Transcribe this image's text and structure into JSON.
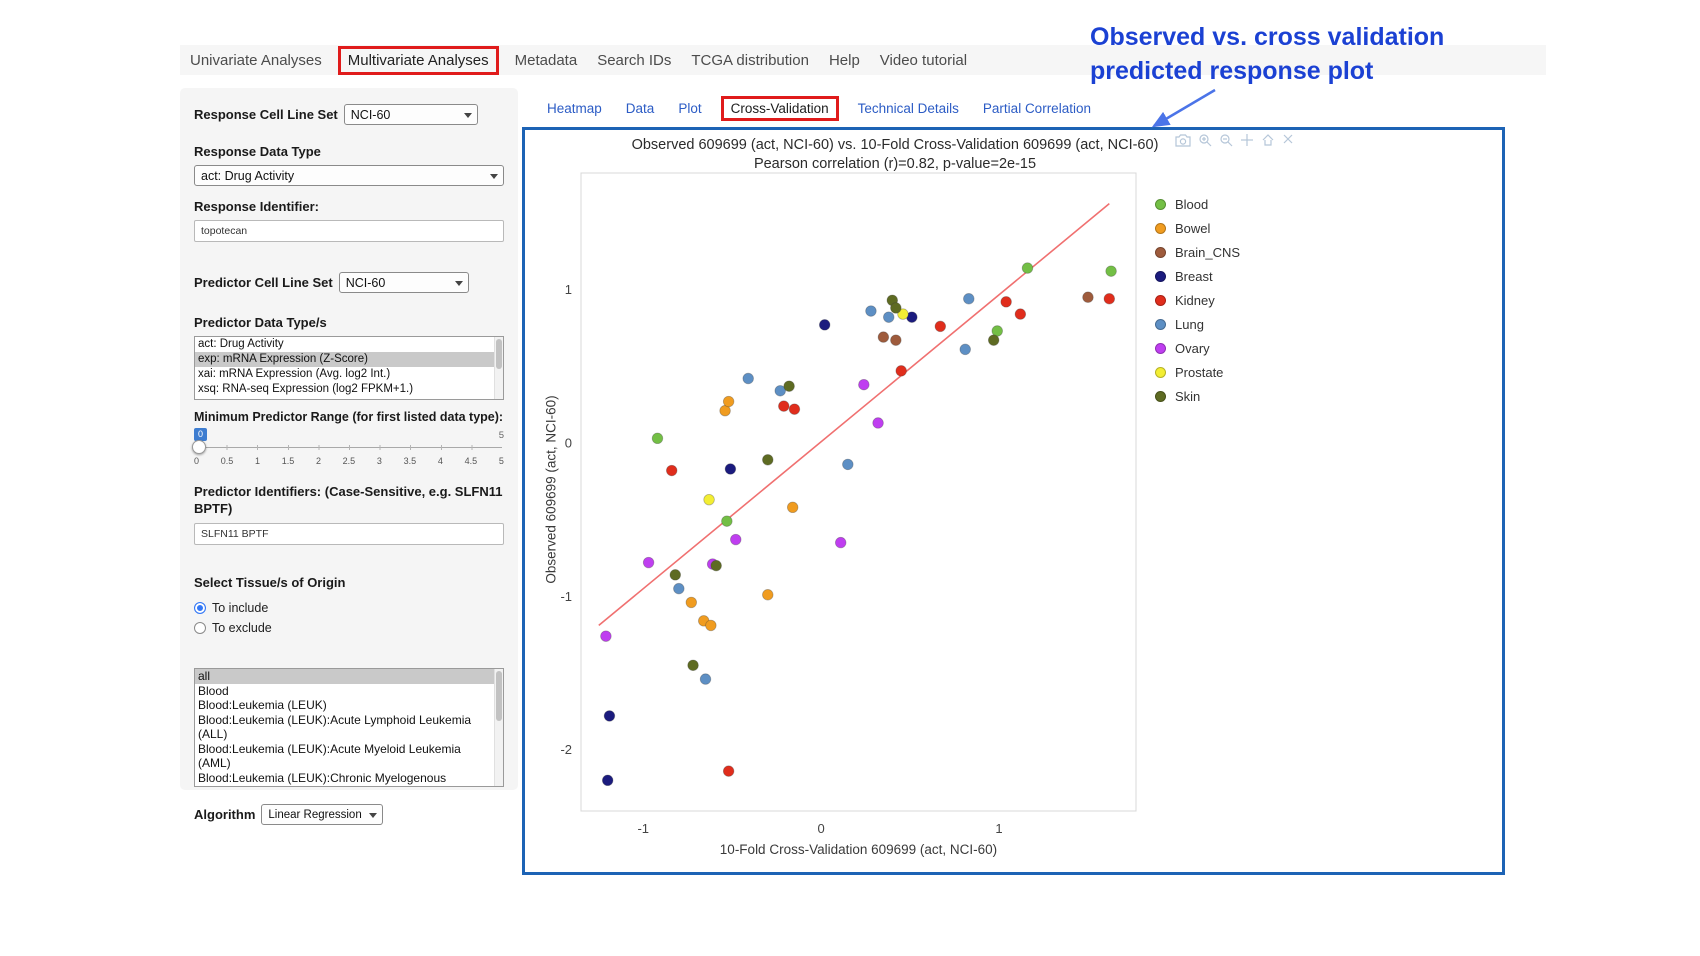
{
  "annotation": {
    "line1": "Observed vs. cross validation",
    "line2": "predicted response plot"
  },
  "nav": {
    "items": [
      {
        "label": "Univariate Analyses"
      },
      {
        "label": "Multivariate Analyses"
      },
      {
        "label": "Metadata"
      },
      {
        "label": "Search IDs"
      },
      {
        "label": "TCGA distribution"
      },
      {
        "label": "Help"
      },
      {
        "label": "Video tutorial"
      }
    ]
  },
  "subtabs": {
    "items": [
      {
        "label": "Heatmap"
      },
      {
        "label": "Data"
      },
      {
        "label": "Plot"
      },
      {
        "label": "Cross-Validation"
      },
      {
        "label": "Technical Details"
      },
      {
        "label": "Partial Correlation"
      }
    ]
  },
  "sidebar": {
    "response_cell_line_set": {
      "label": "Response Cell Line Set",
      "value": "NCI-60"
    },
    "response_data_type": {
      "label": "Response Data Type",
      "value": "act: Drug Activity"
    },
    "response_identifier": {
      "label": "Response Identifier:",
      "value": "topotecan"
    },
    "predictor_cell_line_set": {
      "label": "Predictor Cell Line Set",
      "value": "NCI-60"
    },
    "predictor_data_types": {
      "label": "Predictor Data Type/s",
      "options": [
        "act: Drug Activity",
        "exp: mRNA Expression (Z-Score)",
        "xai: mRNA Expression (Avg. log2 Int.)",
        "xsq: RNA-seq Expression (log2 FPKM+1.)"
      ],
      "selected": "exp: mRNA Expression (Z-Score)"
    },
    "min_predictor_range": {
      "label": "Minimum Predictor Range (for first listed data type):",
      "value": "0",
      "max_label": "5",
      "ticks": [
        "0",
        "0.5",
        "1",
        "1.5",
        "2",
        "2.5",
        "3",
        "3.5",
        "4",
        "4.5",
        "5"
      ]
    },
    "predictor_identifiers": {
      "label": "Predictor Identifiers: (Case-Sensitive, e.g. SLFN11 BPTF)",
      "value": "SLFN11 BPTF"
    },
    "tissue_origin": {
      "label": "Select Tissue/s of Origin",
      "radios": [
        {
          "label": "To include",
          "checked": true
        },
        {
          "label": "To exclude",
          "checked": false
        }
      ],
      "options": [
        "all",
        "Blood",
        "Blood:Leukemia (LEUK)",
        "Blood:Leukemia (LEUK):Acute Lymphoid Leukemia (ALL)",
        "Blood:Leukemia (LEUK):Acute Myeloid Leukemia (AML)",
        "Blood:Leukemia (LEUK):Chronic Myelogenous Leukemia (CML)"
      ],
      "selected": "all"
    },
    "algorithm": {
      "label": "Algorithm",
      "value": "Linear Regression"
    }
  },
  "chart_data": {
    "type": "scatter",
    "title": "Observed 609699 (act, NCI-60) vs. 10-Fold Cross-Validation 609699 (act, NCI-60)",
    "subtitle": "Pearson correlation (r)=0.82, p-value=2e-15",
    "xlabel": "10-Fold Cross-Validation 609699 (act, NCI-60)",
    "ylabel": "Observed 609699 (act, NCI-60)",
    "xlim": [
      -1.35,
      1.77
    ],
    "ylim": [
      -2.4,
      1.76
    ],
    "xticks": [
      -1,
      0,
      1
    ],
    "yticks": [
      -2,
      -1,
      0,
      1
    ],
    "grid": false,
    "legend_position": "right",
    "regression_line": {
      "x1": -1.25,
      "y1": -1.19,
      "x2": 1.62,
      "y2": 1.56,
      "color": "#f07070"
    },
    "series": [
      {
        "name": "Blood",
        "color": "#73bf45",
        "points": [
          [
            -0.92,
            0.03
          ],
          [
            -0.53,
            -0.51
          ],
          [
            0.99,
            0.73
          ],
          [
            1.16,
            1.14
          ],
          [
            1.63,
            1.12
          ]
        ]
      },
      {
        "name": "Bowel",
        "color": "#f09c20",
        "points": [
          [
            -0.73,
            -1.04
          ],
          [
            -0.66,
            -1.16
          ],
          [
            -0.62,
            -1.19
          ],
          [
            -0.54,
            0.21
          ],
          [
            -0.52,
            0.27
          ],
          [
            -0.3,
            -0.99
          ],
          [
            -0.16,
            -0.42
          ]
        ]
      },
      {
        "name": "Brain_CNS",
        "color": "#9e5b3c",
        "points": [
          [
            0.35,
            0.69
          ],
          [
            0.42,
            0.67
          ],
          [
            1.5,
            0.95
          ]
        ]
      },
      {
        "name": "Breast",
        "color": "#1b1b7e",
        "points": [
          [
            -1.2,
            -2.2
          ],
          [
            -1.19,
            -1.78
          ],
          [
            -0.51,
            -0.17
          ],
          [
            0.02,
            0.77
          ],
          [
            0.51,
            0.82
          ]
        ]
      },
      {
        "name": "Kidney",
        "color": "#e02d1c",
        "points": [
          [
            -0.84,
            -0.18
          ],
          [
            -0.52,
            -2.14
          ],
          [
            -0.21,
            0.24
          ],
          [
            -0.15,
            0.22
          ],
          [
            0.45,
            0.47
          ],
          [
            0.67,
            0.76
          ],
          [
            1.04,
            0.92
          ],
          [
            1.12,
            0.84
          ],
          [
            1.62,
            0.94
          ]
        ]
      },
      {
        "name": "Lung",
        "color": "#5d8fc4",
        "points": [
          [
            -0.8,
            -0.95
          ],
          [
            -0.65,
            -1.54
          ],
          [
            -0.41,
            0.42
          ],
          [
            -0.23,
            0.34
          ],
          [
            0.15,
            -0.14
          ],
          [
            0.28,
            0.86
          ],
          [
            0.38,
            0.82
          ],
          [
            0.81,
            0.61
          ],
          [
            0.83,
            0.94
          ]
        ]
      },
      {
        "name": "Ovary",
        "color": "#bf3ef0",
        "points": [
          [
            -1.21,
            -1.26
          ],
          [
            -0.97,
            -0.78
          ],
          [
            -0.61,
            -0.79
          ],
          [
            -0.48,
            -0.63
          ],
          [
            0.11,
            -0.65
          ],
          [
            0.24,
            0.38
          ],
          [
            0.32,
            0.13
          ]
        ]
      },
      {
        "name": "Prostate",
        "color": "#f3ee33",
        "points": [
          [
            -0.63,
            -0.37
          ],
          [
            0.46,
            0.84
          ]
        ]
      },
      {
        "name": "Skin",
        "color": "#5e6b22",
        "points": [
          [
            -0.82,
            -0.86
          ],
          [
            -0.72,
            -1.45
          ],
          [
            -0.59,
            -0.8
          ],
          [
            -0.3,
            -0.11
          ],
          [
            -0.18,
            0.37
          ],
          [
            0.4,
            0.93
          ],
          [
            0.42,
            0.88
          ],
          [
            0.97,
            0.67
          ]
        ]
      }
    ]
  }
}
